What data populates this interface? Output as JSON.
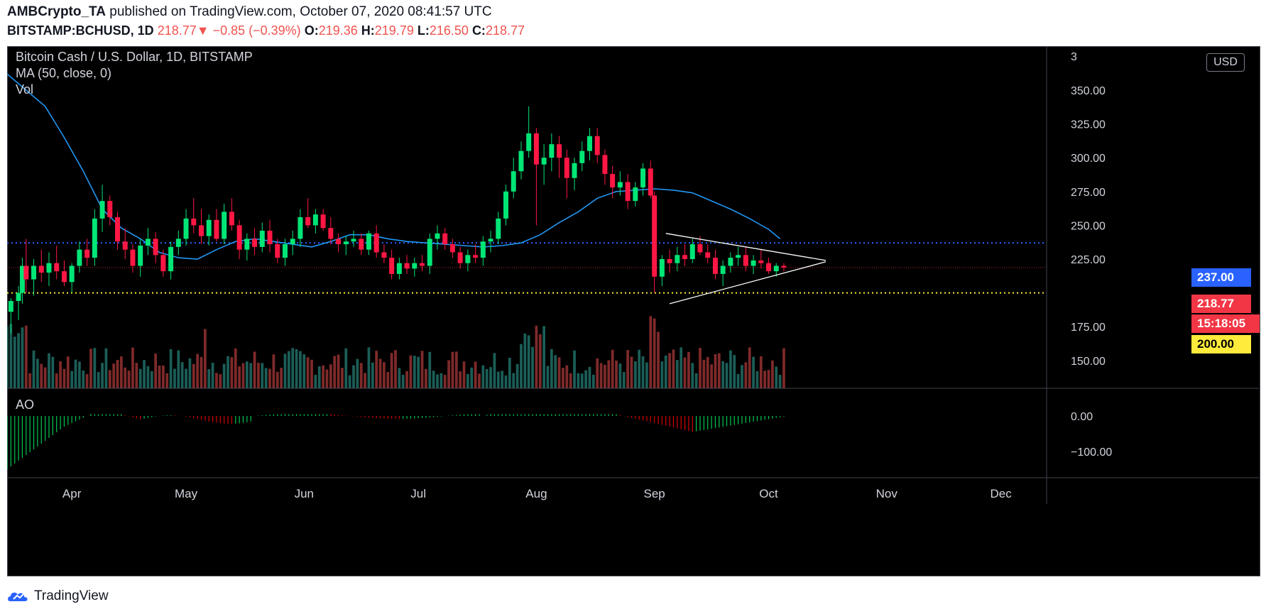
{
  "header": {
    "publisher": "AMBCrypto_TA",
    "published_text": "published on TradingView.com, October 07, 2020 08:41:57 UTC",
    "symbol": "BITSTAMP:BCHUSD, 1D",
    "last": "218.77",
    "change_arrow": "▼",
    "change": "−0.85 (−0.39%)",
    "o_label": "O:",
    "o": "219.36",
    "h_label": "H:",
    "h": "219.79",
    "l_label": "L:",
    "l": "216.50",
    "c_label": "C:",
    "c": "218.77"
  },
  "legend": {
    "title": "Bitcoin Cash / U.S. Dollar, 1D, BITSTAMP",
    "ma": "MA (50, close, 0)",
    "vol": "Vol",
    "ao": "AO"
  },
  "currency_button": "USD",
  "footer": {
    "brand": "TradingView"
  },
  "colors": {
    "up": "#26a69a",
    "down": "#ef5350",
    "candle_up": "#00e676",
    "candle_down": "#ff1744",
    "ma": "#2196f3",
    "line_237": "#2962ff",
    "line_200": "#ffeb3b",
    "triangle": "#ffffff"
  },
  "chart_data": {
    "type": "candlestick",
    "title": "Bitcoin Cash / U.S. Dollar, 1D, BITSTAMP",
    "y_ticks": [
      "350.00",
      "325.00",
      "300.00",
      "275.00",
      "250.00",
      "225.00",
      "175.00",
      "150.00"
    ],
    "y_partial_top": "3",
    "ylim": [
      130,
      370
    ],
    "x_ticks": [
      {
        "label": "Apr",
        "day": 92
      },
      {
        "label": "May",
        "day": 122
      },
      {
        "label": "Jun",
        "day": 153
      },
      {
        "label": "Jul",
        "day": 183
      },
      {
        "label": "Aug",
        "day": 214
      },
      {
        "label": "Sep",
        "day": 245
      },
      {
        "label": "Oct",
        "day": 275
      },
      {
        "label": "Nov",
        "day": 306
      },
      {
        "label": "Dec",
        "day": 336
      }
    ],
    "x_range_days": [
      75,
      348
    ],
    "price_levels": [
      {
        "label": "237.00",
        "value": 237,
        "style": "dotted",
        "color": "#2962ff"
      },
      {
        "label": "200.00",
        "value": 200,
        "style": "dotted",
        "color": "#ffeb3b"
      }
    ],
    "current_price": {
      "label": "218.77",
      "value": 218.77,
      "countdown": "15:18:05"
    },
    "ma_points": [
      [
        75,
        362
      ],
      [
        80,
        350
      ],
      [
        85,
        338
      ],
      [
        90,
        315
      ],
      [
        95,
        290
      ],
      [
        100,
        262
      ],
      [
        105,
        248
      ],
      [
        110,
        240
      ],
      [
        115,
        230
      ],
      [
        120,
        226
      ],
      [
        125,
        225
      ],
      [
        130,
        232
      ],
      [
        135,
        238
      ],
      [
        140,
        240
      ],
      [
        145,
        238
      ],
      [
        150,
        236
      ],
      [
        155,
        234
      ],
      [
        160,
        238
      ],
      [
        165,
        243
      ],
      [
        170,
        243
      ],
      [
        175,
        240
      ],
      [
        180,
        238
      ],
      [
        185,
        237
      ],
      [
        190,
        236
      ],
      [
        195,
        235
      ],
      [
        200,
        234
      ],
      [
        205,
        235
      ],
      [
        210,
        237
      ],
      [
        215,
        243
      ],
      [
        220,
        252
      ],
      [
        225,
        260
      ],
      [
        230,
        270
      ],
      [
        235,
        275
      ],
      [
        240,
        276
      ],
      [
        245,
        277
      ],
      [
        250,
        276
      ],
      [
        255,
        274
      ],
      [
        260,
        268
      ],
      [
        265,
        262
      ],
      [
        270,
        255
      ],
      [
        275,
        247
      ],
      [
        278,
        240
      ]
    ],
    "candles": [
      [
        76,
        186,
        196,
        170,
        194
      ],
      [
        78,
        194,
        205,
        180,
        200
      ],
      [
        79,
        200,
        226,
        192,
        220
      ],
      [
        80,
        220,
        240,
        200,
        210
      ],
      [
        82,
        210,
        225,
        198,
        220
      ],
      [
        84,
        220,
        232,
        208,
        215
      ],
      [
        86,
        215,
        230,
        205,
        222
      ],
      [
        88,
        222,
        235,
        210,
        216
      ],
      [
        90,
        216,
        224,
        205,
        208
      ],
      [
        92,
        208,
        222,
        200,
        220
      ],
      [
        94,
        220,
        238,
        215,
        232
      ],
      [
        96,
        232,
        240,
        220,
        226
      ],
      [
        98,
        226,
        262,
        220,
        255
      ],
      [
        100,
        255,
        280,
        245,
        268
      ],
      [
        102,
        268,
        272,
        250,
        256
      ],
      [
        104,
        256,
        260,
        232,
        238
      ],
      [
        106,
        238,
        248,
        225,
        232
      ],
      [
        108,
        232,
        236,
        215,
        220
      ],
      [
        110,
        220,
        240,
        212,
        235
      ],
      [
        112,
        235,
        248,
        228,
        240
      ],
      [
        114,
        240,
        245,
        222,
        228
      ],
      [
        116,
        228,
        232,
        212,
        216
      ],
      [
        118,
        216,
        238,
        210,
        234
      ],
      [
        120,
        234,
        246,
        228,
        240
      ],
      [
        122,
        240,
        262,
        235,
        255
      ],
      [
        124,
        255,
        270,
        244,
        250
      ],
      [
        126,
        250,
        262,
        236,
        242
      ],
      [
        128,
        242,
        258,
        235,
        254
      ],
      [
        130,
        254,
        262,
        238,
        240
      ],
      [
        132,
        240,
        266,
        236,
        260
      ],
      [
        134,
        260,
        270,
        246,
        250
      ],
      [
        136,
        250,
        254,
        225,
        232
      ],
      [
        138,
        232,
        244,
        224,
        240
      ],
      [
        140,
        240,
        248,
        228,
        234
      ],
      [
        142,
        234,
        252,
        230,
        246
      ],
      [
        144,
        246,
        254,
        230,
        236
      ],
      [
        146,
        236,
        240,
        222,
        226
      ],
      [
        148,
        226,
        240,
        220,
        236
      ],
      [
        150,
        236,
        246,
        228,
        240
      ],
      [
        152,
        240,
        262,
        234,
        256
      ],
      [
        154,
        256,
        270,
        248,
        250
      ],
      [
        156,
        250,
        262,
        244,
        258
      ],
      [
        158,
        258,
        262,
        246,
        248
      ],
      [
        160,
        248,
        256,
        236,
        240
      ],
      [
        162,
        240,
        244,
        230,
        236
      ],
      [
        164,
        236,
        242,
        228,
        238
      ],
      [
        166,
        238,
        246,
        234,
        240
      ],
      [
        168,
        240,
        244,
        228,
        232
      ],
      [
        170,
        232,
        246,
        228,
        244
      ],
      [
        172,
        244,
        250,
        226,
        230
      ],
      [
        174,
        230,
        236,
        222,
        226
      ],
      [
        176,
        226,
        232,
        210,
        214
      ],
      [
        178,
        214,
        226,
        210,
        222
      ],
      [
        180,
        222,
        228,
        214,
        218
      ],
      [
        182,
        218,
        226,
        212,
        222
      ],
      [
        184,
        222,
        228,
        216,
        220
      ],
      [
        186,
        220,
        244,
        214,
        240
      ],
      [
        188,
        240,
        250,
        232,
        244
      ],
      [
        190,
        244,
        248,
        232,
        236
      ],
      [
        192,
        236,
        240,
        226,
        230
      ],
      [
        194,
        230,
        234,
        218,
        222
      ],
      [
        196,
        222,
        232,
        216,
        228
      ],
      [
        198,
        228,
        236,
        222,
        226
      ],
      [
        200,
        226,
        242,
        220,
        238
      ],
      [
        202,
        238,
        246,
        230,
        240
      ],
      [
        204,
        240,
        260,
        236,
        255
      ],
      [
        206,
        255,
        280,
        250,
        275
      ],
      [
        208,
        275,
        300,
        270,
        290
      ],
      [
        210,
        290,
        312,
        284,
        305
      ],
      [
        212,
        305,
        338,
        300,
        318
      ],
      [
        214,
        318,
        322,
        250,
        295
      ],
      [
        216,
        295,
        310,
        280,
        300
      ],
      [
        218,
        300,
        318,
        290,
        310
      ],
      [
        220,
        310,
        316,
        285,
        300
      ],
      [
        222,
        300,
        306,
        270,
        285
      ],
      [
        224,
        285,
        300,
        276,
        296
      ],
      [
        226,
        296,
        312,
        290,
        305
      ],
      [
        228,
        305,
        322,
        298,
        316
      ],
      [
        230,
        316,
        322,
        296,
        302
      ],
      [
        232,
        302,
        306,
        280,
        288
      ],
      [
        234,
        288,
        294,
        270,
        278
      ],
      [
        236,
        278,
        290,
        272,
        282
      ],
      [
        238,
        282,
        288,
        262,
        268
      ],
      [
        240,
        268,
        282,
        264,
        278
      ],
      [
        242,
        278,
        296,
        272,
        292
      ],
      [
        244,
        292,
        298,
        270,
        272
      ],
      [
        245,
        272,
        275,
        200,
        212
      ],
      [
        247,
        212,
        228,
        205,
        225
      ],
      [
        249,
        225,
        232,
        215,
        222
      ],
      [
        251,
        222,
        234,
        216,
        228
      ],
      [
        253,
        228,
        236,
        220,
        225
      ],
      [
        255,
        225,
        240,
        222,
        236
      ],
      [
        257,
        236,
        242,
        228,
        230
      ],
      [
        259,
        230,
        236,
        222,
        226
      ],
      [
        261,
        226,
        232,
        210,
        214
      ],
      [
        263,
        214,
        224,
        205,
        220
      ],
      [
        265,
        220,
        230,
        215,
        226
      ],
      [
        267,
        226,
        234,
        220,
        228
      ],
      [
        269,
        228,
        234,
        216,
        220
      ],
      [
        271,
        220,
        228,
        214,
        224
      ],
      [
        273,
        224,
        232,
        218,
        222
      ],
      [
        275,
        222,
        226,
        214,
        216
      ],
      [
        277,
        216,
        222,
        212,
        220
      ],
      [
        279,
        220,
        222,
        216,
        218.77
      ]
    ],
    "volume": "relative bars",
    "ao_ticks": [
      "0.00",
      "−100.00"
    ]
  }
}
